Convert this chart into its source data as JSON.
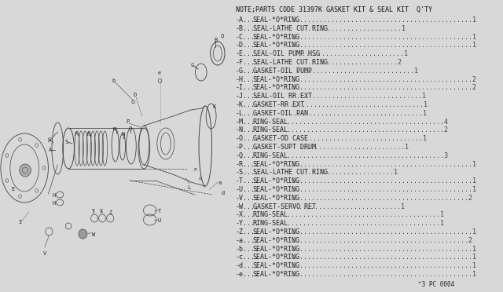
{
  "bg_color": "#e8e8e8",
  "title": "NOTE;PARTS CODE 31397K GASKET KIT & SEAL KIT  Q'TY",
  "footer": "^3 PC 0004",
  "parts": [
    [
      "-A....",
      "SEAL-*O*RING",
      "...............................................1"
    ],
    [
      "-B....",
      "SEAL-LATHE CUT RING",
      "........................1"
    ],
    [
      "-C....",
      "SEAL-*O*RING",
      "...............................................1"
    ],
    [
      "-D....",
      "SEAL-*O*RING",
      "...............................................1"
    ],
    [
      "-E....",
      "SEAL-OIL PUMP HSG",
      "..........................1"
    ],
    [
      "-F....",
      "SEAL-LATHE CUT RING",
      ".......................2"
    ],
    [
      "-G....",
      "GASKET-OIL PUMP",
      "..............................1"
    ],
    [
      "-H....",
      "SEAL-*O*RING",
      "...............................................2"
    ],
    [
      "-I....",
      "SEAL-*O*RING",
      "...............................................2"
    ],
    [
      "-J....",
      "SEAL-OIL RR EXT",
      "................................1"
    ],
    [
      "-K....",
      "GASKET-RR EXT",
      "..................................1"
    ],
    [
      "-L....",
      "GASKET-OIL PAN",
      ".................................1"
    ],
    [
      "-M....",
      "RING-SEAL",
      "..........................................4"
    ],
    [
      "-N....",
      "RING-SEAL",
      "..........................................2"
    ],
    [
      "-O....",
      "GASKET-OD CASE",
      ".................................1"
    ],
    [
      "-P....",
      "GASKET-SUPT DRUM",
      "...........................1"
    ],
    [
      "-Q....",
      "RING-SEAL",
      "..........................................3"
    ],
    [
      "-R....",
      "SEAL-*O*RING",
      "...............................................1"
    ],
    [
      "-S....",
      "SEAL-LATHE CUT RING",
      "......................1"
    ],
    [
      "-T....",
      "SEAL-*O*RING",
      "...............................................1"
    ],
    [
      "-U....",
      "SEAL-*O*RING",
      "...............................................1"
    ],
    [
      "-V....",
      "SEAL-*O*RING",
      "..............................................2"
    ],
    [
      "-W....",
      "GASKET-SERVO RET",
      "..........................1"
    ],
    [
      "-X....",
      "RING-SEAL",
      ".........................................1"
    ],
    [
      "-Y....",
      "RING-SEAL",
      ".........................................1"
    ],
    [
      "-Z....",
      "SEAL-*O*RING",
      "...............................................1"
    ],
    [
      "-a....",
      "SEAL-*O*RING",
      "..............................................2"
    ],
    [
      "-b....",
      "SEAL-*O*RING",
      "...............................................1"
    ],
    [
      "-c....",
      "SEAL-*O*RING",
      "...............................................1"
    ],
    [
      "-d....",
      "SEAL-*O*RING",
      "...............................................1"
    ],
    [
      "-e....",
      "SEAL-*O*RING",
      "...............................................1"
    ]
  ]
}
